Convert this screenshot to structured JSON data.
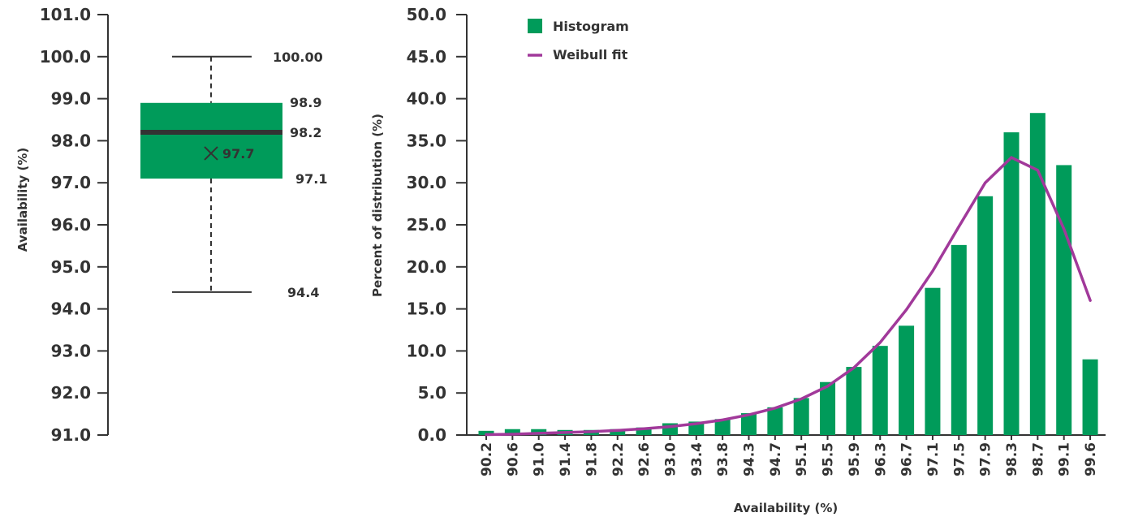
{
  "colors": {
    "bar": "#009b5a",
    "fit": "#a1399a",
    "text": "#333333",
    "axis": "#333333"
  },
  "chart_data": [
    {
      "type": "box",
      "ylabel": "Availability (%)",
      "ylim": [
        91.0,
        101.0
      ],
      "yticks": [
        "91.0",
        "92.0",
        "93.0",
        "94.0",
        "95.0",
        "96.0",
        "97.0",
        "98.0",
        "99.0",
        "100.0",
        "101.0"
      ],
      "stats": {
        "max": 100.0,
        "q3": 98.9,
        "median": 98.2,
        "mean": 97.7,
        "q1": 97.1,
        "min": 94.4
      },
      "labels": {
        "max": "100.00",
        "q3": "98.9",
        "median": "98.2",
        "mean": "97.7",
        "q1": "97.1",
        "min": "94.4"
      }
    },
    {
      "type": "bar",
      "xlabel": "Availability (%)",
      "ylabel": "Percent of distribution (%)",
      "ylim": [
        0,
        50
      ],
      "yticks": [
        "0.0",
        "5.0",
        "10.0",
        "15.0",
        "20.0",
        "25.0",
        "30.0",
        "35.0",
        "40.0",
        "45.0",
        "50.0"
      ],
      "categories": [
        "90.2",
        "90.6",
        "91.0",
        "91.4",
        "91.8",
        "92.2",
        "92.6",
        "93.0",
        "93.4",
        "93.8",
        "94.3",
        "94.7",
        "95.1",
        "95.5",
        "95.9",
        "96.3",
        "96.7",
        "97.1",
        "97.5",
        "97.9",
        "98.3",
        "98.7",
        "99.1",
        "99.6"
      ],
      "series": [
        {
          "name": "Histogram",
          "kind": "bar",
          "values": [
            0.5,
            0.7,
            0.7,
            0.6,
            0.6,
            0.7,
            0.9,
            1.4,
            1.6,
            1.9,
            2.6,
            3.3,
            4.4,
            6.3,
            8.1,
            10.6,
            13.0,
            17.5,
            22.6,
            28.4,
            36.0,
            38.3,
            32.1,
            9.0
          ]
        },
        {
          "name": "Weibull fit",
          "kind": "line",
          "values": [
            0.05,
            0.1,
            0.2,
            0.3,
            0.4,
            0.55,
            0.75,
            1.0,
            1.35,
            1.8,
            2.4,
            3.2,
            4.3,
            5.8,
            8.0,
            11.0,
            14.9,
            19.5,
            24.8,
            30.0,
            33.0,
            31.5,
            24.5,
            16.0
          ]
        }
      ],
      "legend": "top-left"
    }
  ]
}
